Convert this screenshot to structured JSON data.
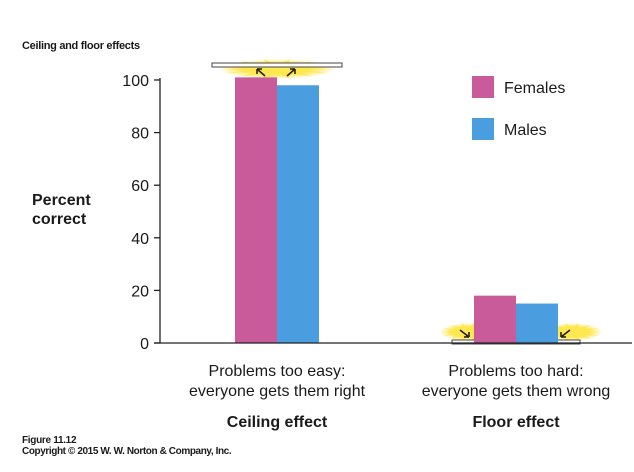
{
  "chart_data": {
    "type": "bar",
    "title": "Ceiling and floor effects",
    "ylabel": "Percent correct",
    "ylim": [
      0,
      100
    ],
    "yticks": [
      0,
      20,
      40,
      60,
      80,
      100
    ],
    "categories": [
      {
        "line1": "Problems too easy:",
        "line2": "everyone gets them right",
        "effect": "Ceiling effect"
      },
      {
        "line1": "Problems too hard:",
        "line2": "everyone gets them wrong",
        "effect": "Floor effect"
      }
    ],
    "series": [
      {
        "name": "Females",
        "color": "#c95b9a",
        "values": [
          101,
          18
        ]
      },
      {
        "name": "Males",
        "color": "#4a9ee0",
        "values": [
          98,
          15
        ]
      }
    ],
    "legend_position": "top-right",
    "grid": false,
    "annotations": [
      "ceiling-bar-with-arrows",
      "floor-bar-with-arrows"
    ]
  },
  "caption": {
    "figure": "Figure 11.12",
    "copyright": "Copyright © 2015 W. W. Norton & Company, Inc."
  }
}
